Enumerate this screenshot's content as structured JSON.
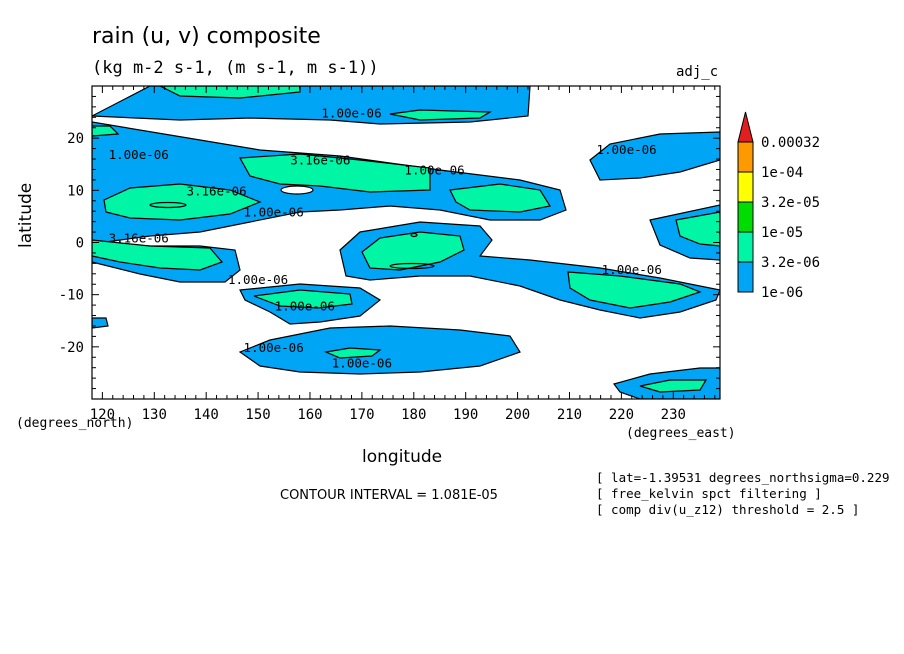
{
  "chart_data": {
    "type": "filled-contour",
    "title": "rain (u, v) composite",
    "subtitle": "(kg m-2 s-1, (m s-1, m s-1))",
    "tag": "adj_c",
    "xlabel": "longitude",
    "ylabel": "latitude",
    "x_unit": "(degrees_east)",
    "y_unit": "(degrees_north)",
    "xlim": [
      118,
      239
    ],
    "ylim": [
      -30,
      30
    ],
    "x_ticks": [
      120,
      130,
      140,
      150,
      160,
      170,
      180,
      190,
      200,
      210,
      220,
      230
    ],
    "y_ticks": [
      20,
      10,
      0,
      -10,
      -20
    ],
    "legend": {
      "placement": "right",
      "levels": [
        {
          "label": "0.00032",
          "color": "#e02020"
        },
        {
          "label": "1e-04",
          "color": "#ff9900"
        },
        {
          "label": "3.2e-05",
          "color": "#ffff00"
        },
        {
          "label": "1e-05",
          "color": "#00dd00"
        },
        {
          "label": "3.2e-06",
          "color": "#00f5a5"
        },
        {
          "label": "1e-06",
          "color": "#00a5f5"
        }
      ]
    },
    "contour_labels": [
      {
        "text": "1.00e-06",
        "lon": 168,
        "lat": 24
      },
      {
        "text": "1.00e-06",
        "lon": 127,
        "lat": 16
      },
      {
        "text": "3.16e-06",
        "lon": 162,
        "lat": 15
      },
      {
        "text": "1.00e-06",
        "lon": 184,
        "lat": 13
      },
      {
        "text": "1.00e-06",
        "lon": 221,
        "lat": 17
      },
      {
        "text": "3.16e-06",
        "lon": 142,
        "lat": 9
      },
      {
        "text": "1.00e-06",
        "lon": 153,
        "lat": 5
      },
      {
        "text": "3.16e-06",
        "lon": 127,
        "lat": 0
      },
      {
        "text": "1.00e-06",
        "lon": 150,
        "lat": -8
      },
      {
        "text": "1.00e-06",
        "lon": 159,
        "lat": -13
      },
      {
        "text": "1.00e-06",
        "lon": 222,
        "lat": -6
      },
      {
        "text": "1.00e-06",
        "lon": 153,
        "lat": -21
      },
      {
        "text": "1.00e-06",
        "lon": 170,
        "lat": -24
      }
    ]
  },
  "contour_interval": "CONTOUR INTERVAL = 1.081E-05",
  "notes": [
    "[ lat=-1.39531 degrees_northsigma=0.229",
    "[ free_kelvin spct filtering ]",
    "[ comp div(u_z12) threshold = 2.5 ]"
  ]
}
